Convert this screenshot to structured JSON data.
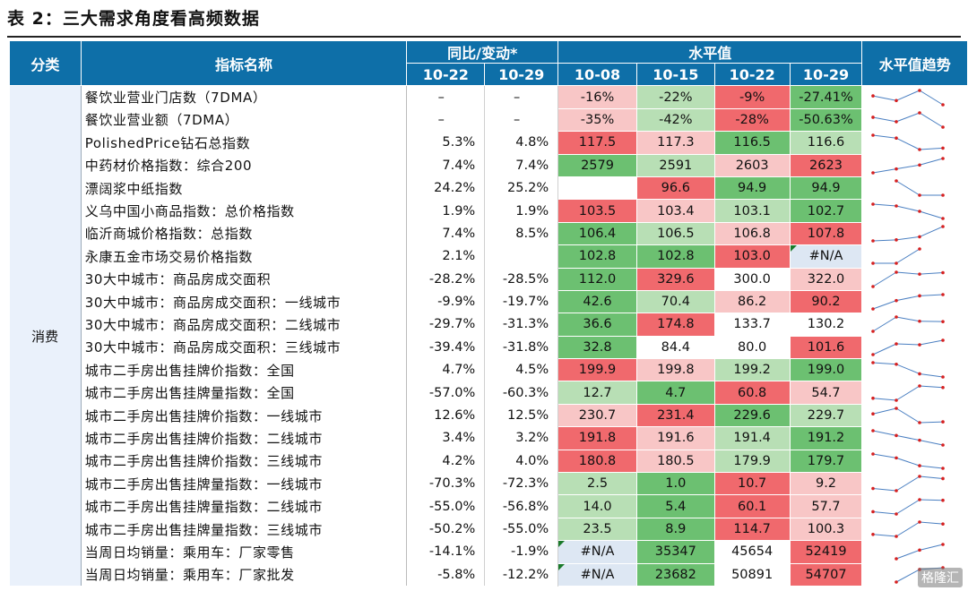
{
  "title": "表 2：三大需求角度看高频数据",
  "header": {
    "category": "分类",
    "indicator": "指标名称",
    "yoy_group": "同比/变动*",
    "level_group": "水平值",
    "trend": "水平值趋势",
    "yoy_dates": [
      "10-22",
      "10-29"
    ],
    "level_dates": [
      "10-08",
      "10-15",
      "10-22",
      "10-29"
    ]
  },
  "category_label": "消费",
  "colors": {
    "header": "#0e6fa8",
    "red_strong": "#f0696d",
    "red_light": "#f8c6c6",
    "green_strong": "#6cc071",
    "green_light": "#b8dfb5",
    "neutral": "#ffffff",
    "na": "#dde7f3"
  },
  "rows": [
    {
      "name": "餐饮业营业门店数（7DMA）",
      "yoy1": "–",
      "yoy2": "–",
      "lv": [
        "-16%",
        "-22%",
        "-9%",
        "-27.41%"
      ],
      "c": [
        "rl",
        "gl",
        "rs",
        "gs"
      ],
      "t": [
        -16,
        -22,
        -9,
        -27.41
      ]
    },
    {
      "name": "餐饮业营业额（7DMA）",
      "yoy1": "–",
      "yoy2": "–",
      "lv": [
        "-35%",
        "-42%",
        "-28%",
        "-50.63%"
      ],
      "c": [
        "rl",
        "gl",
        "rs",
        "gs"
      ],
      "t": [
        -35,
        -42,
        -28,
        -50.63
      ]
    },
    {
      "name": "PolishedPrice钻石总指数",
      "yoy1": "5.3%",
      "yoy2": "4.8%",
      "lv": [
        "117.5",
        "117.3",
        "116.5",
        "116.6"
      ],
      "c": [
        "rs",
        "rl",
        "gs",
        "gl"
      ],
      "t": [
        117.5,
        117.3,
        116.5,
        116.6
      ]
    },
    {
      "name": "中药材价格指数：综合200",
      "yoy1": "7.4%",
      "yoy2": "7.4%",
      "lv": [
        "2579",
        "2591",
        "2603",
        "2623"
      ],
      "c": [
        "gs",
        "gl",
        "rl",
        "rs"
      ],
      "t": [
        2579,
        2591,
        2603,
        2623
      ]
    },
    {
      "name": "漂阔浆中纸指数",
      "yoy1": "24.2%",
      "yoy2": "25.2%",
      "lv": [
        "",
        "96.6",
        "94.9",
        "94.9"
      ],
      "c": [
        "n",
        "rs",
        "gs",
        "gs"
      ],
      "t": [
        null,
        96.6,
        94.9,
        94.9
      ]
    },
    {
      "name": "义乌中国小商品指数：总价格指数",
      "yoy1": "1.9%",
      "yoy2": "1.9%",
      "lv": [
        "103.5",
        "103.4",
        "103.1",
        "102.7"
      ],
      "c": [
        "rs",
        "rl",
        "gl",
        "gs"
      ],
      "t": [
        103.5,
        103.4,
        103.1,
        102.7
      ]
    },
    {
      "name": "临沂商城价格指数：总指数",
      "yoy1": "7.4%",
      "yoy2": "8.5%",
      "lv": [
        "106.4",
        "106.5",
        "106.8",
        "107.8"
      ],
      "c": [
        "gs",
        "gl",
        "rl",
        "rs"
      ],
      "t": [
        106.4,
        106.5,
        106.8,
        107.8
      ]
    },
    {
      "name": "永康五金市场交易价格指数",
      "yoy1": "2.1%",
      "yoy2": "",
      "lv": [
        "102.8",
        "102.8",
        "103.0",
        "#N/A"
      ],
      "c": [
        "gs",
        "gs",
        "rs",
        "na"
      ],
      "t": [
        102.8,
        102.8,
        103.0,
        null
      ],
      "ind": [
        false,
        false,
        false,
        true
      ]
    },
    {
      "name": "30大中城市：商品房成交面积",
      "yoy1": "-28.2%",
      "yoy2": "-28.5%",
      "lv": [
        "112.0",
        "329.6",
        "300.0",
        "322.0"
      ],
      "c": [
        "gs",
        "rs",
        "n",
        "rl"
      ],
      "t": [
        112.0,
        329.6,
        300.0,
        322.0
      ]
    },
    {
      "name": "30大中城市：商品房成交面积：一线城市",
      "yoy1": "-9.9%",
      "yoy2": "-19.7%",
      "lv": [
        "42.6",
        "70.4",
        "86.2",
        "90.2"
      ],
      "c": [
        "gs",
        "gl",
        "rl",
        "rs"
      ],
      "t": [
        42.6,
        70.4,
        86.2,
        90.2
      ]
    },
    {
      "name": "30大中城市：商品房成交面积：二线城市",
      "yoy1": "-29.7%",
      "yoy2": "-31.3%",
      "lv": [
        "36.6",
        "174.8",
        "133.7",
        "130.2"
      ],
      "c": [
        "gs",
        "rs",
        "n",
        "n"
      ],
      "t": [
        36.6,
        174.8,
        133.7,
        130.2
      ]
    },
    {
      "name": "30大中城市：商品房成交面积：三线城市",
      "yoy1": "-39.4%",
      "yoy2": "-31.8%",
      "lv": [
        "32.8",
        "84.4",
        "80.0",
        "101.6"
      ],
      "c": [
        "gs",
        "n",
        "n",
        "rs"
      ],
      "t": [
        32.8,
        84.4,
        80.0,
        101.6
      ]
    },
    {
      "name": "城市二手房出售挂牌价指数：全国",
      "yoy1": "4.7%",
      "yoy2": "4.5%",
      "lv": [
        "199.9",
        "199.8",
        "199.2",
        "199.0"
      ],
      "c": [
        "rs",
        "rl",
        "gl",
        "gs"
      ],
      "t": [
        199.9,
        199.8,
        199.2,
        199.0
      ]
    },
    {
      "name": "城市二手房出售挂牌量指数：全国",
      "yoy1": "-57.0%",
      "yoy2": "-60.3%",
      "lv": [
        "12.7",
        "4.7",
        "60.8",
        "54.7"
      ],
      "c": [
        "gl",
        "gs",
        "rs",
        "rl"
      ],
      "t": [
        12.7,
        4.7,
        60.8,
        54.7
      ]
    },
    {
      "name": "城市二手房出售挂牌价指数：一线城市",
      "yoy1": "12.6%",
      "yoy2": "12.5%",
      "lv": [
        "230.7",
        "231.4",
        "229.6",
        "229.7"
      ],
      "c": [
        "rl",
        "rs",
        "gs",
        "gl"
      ],
      "t": [
        230.7,
        231.4,
        229.6,
        229.7
      ]
    },
    {
      "name": "城市二手房出售挂牌价指数：二线城市",
      "yoy1": "3.4%",
      "yoy2": "3.2%",
      "lv": [
        "191.8",
        "191.6",
        "191.4",
        "191.2"
      ],
      "c": [
        "rs",
        "rl",
        "gl",
        "gs"
      ],
      "t": [
        191.8,
        191.6,
        191.4,
        191.2
      ]
    },
    {
      "name": "城市二手房出售挂牌价指数：三线城市",
      "yoy1": "4.2%",
      "yoy2": "4.0%",
      "lv": [
        "180.8",
        "180.5",
        "179.9",
        "179.7"
      ],
      "c": [
        "rs",
        "rl",
        "gl",
        "gs"
      ],
      "t": [
        180.8,
        180.5,
        179.9,
        179.7
      ]
    },
    {
      "name": "城市二手房出售挂牌量指数：一线城市",
      "yoy1": "-70.3%",
      "yoy2": "-72.3%",
      "lv": [
        "2.5",
        "1.0",
        "10.7",
        "9.2"
      ],
      "c": [
        "gl",
        "gs",
        "rs",
        "rl"
      ],
      "t": [
        2.5,
        1.0,
        10.7,
        9.2
      ]
    },
    {
      "name": "城市二手房出售挂牌量指数：二线城市",
      "yoy1": "-55.0%",
      "yoy2": "-56.8%",
      "lv": [
        "14.0",
        "5.4",
        "60.1",
        "57.7"
      ],
      "c": [
        "gl",
        "gs",
        "rs",
        "rl"
      ],
      "t": [
        14.0,
        5.4,
        60.1,
        57.7
      ]
    },
    {
      "name": "城市二手房出售挂牌量指数：三线城市",
      "yoy1": "-50.2%",
      "yoy2": "-55.0%",
      "lv": [
        "23.5",
        "8.9",
        "114.7",
        "100.3"
      ],
      "c": [
        "gl",
        "gs",
        "rs",
        "rl"
      ],
      "t": [
        23.5,
        8.9,
        114.7,
        100.3
      ]
    },
    {
      "name": "当周日均销量：乘用车：厂家零售",
      "yoy1": "-14.1%",
      "yoy2": "-1.9%",
      "lv": [
        "#N/A",
        "35347",
        "45654",
        "52419"
      ],
      "c": [
        "na",
        "gs",
        "n",
        "rs"
      ],
      "t": [
        null,
        35347,
        45654,
        52419
      ],
      "ind": [
        true,
        false,
        false,
        false
      ]
    },
    {
      "name": "当周日均销量：乘用车：厂家批发",
      "yoy1": "-5.8%",
      "yoy2": "-12.2%",
      "lv": [
        "#N/A",
        "23682",
        "50891",
        "54707"
      ],
      "c": [
        "na",
        "gs",
        "n",
        "rs"
      ],
      "t": [
        null,
        23682,
        50891,
        54707
      ],
      "ind": [
        true,
        false,
        false,
        false
      ]
    }
  ],
  "watermark": "格隆汇"
}
